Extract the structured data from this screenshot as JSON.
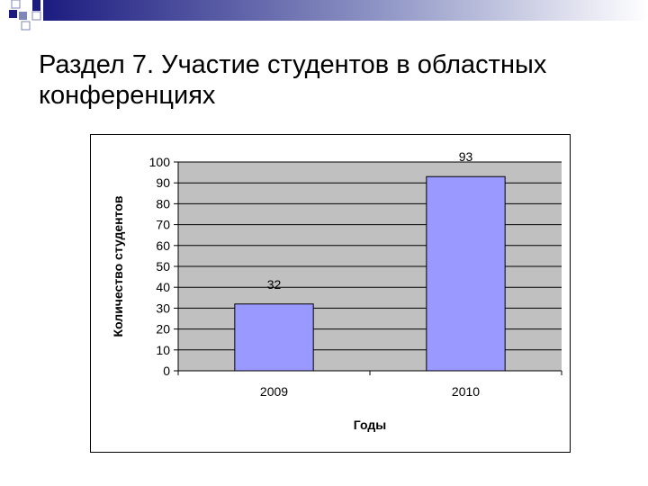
{
  "slide": {
    "title": "Раздел 7. Участие студентов в областных конференциях"
  },
  "decoration": {
    "dark_color": "#1c1c80",
    "light_color": "#7f86b8"
  },
  "chart_data": {
    "type": "bar",
    "title": "",
    "categories": [
      "2009",
      "2010"
    ],
    "series": [
      {
        "values": [
          32,
          93
        ]
      }
    ],
    "data_labels": [
      "32",
      "93"
    ],
    "xlabel": "Годы",
    "ylabel": "Количество студентов",
    "ylim": [
      0,
      100
    ],
    "ytick_step": 10,
    "grid": true,
    "legend": "none",
    "bar_color": "#9999ff",
    "plot_background": "#c0c0c0"
  }
}
